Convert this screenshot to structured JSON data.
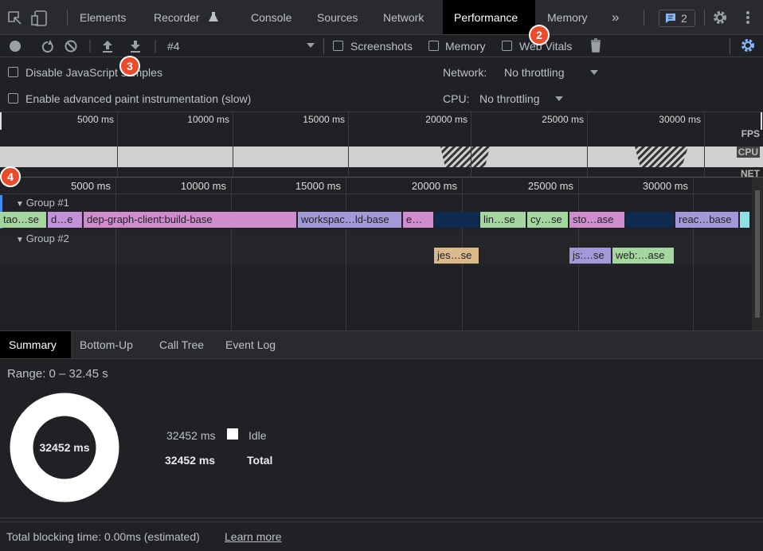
{
  "tabs": [
    "Elements",
    "Recorder",
    "Console",
    "Sources",
    "Network",
    "Performance",
    "Memory"
  ],
  "issues_count": 2,
  "badges": [
    2,
    3,
    4
  ],
  "toolbar": {
    "profile": "#4",
    "checkboxes": [
      "Screenshots",
      "Memory",
      "Web Vitals"
    ]
  },
  "settings": {
    "disable_js": "Disable JavaScript samples",
    "paint": "Enable advanced paint instrumentation (slow)",
    "network_label": "Network:",
    "network_value": "No throttling",
    "cpu_label": "CPU:",
    "cpu_value": "No throttling"
  },
  "overview": {
    "ticks": [
      "5000 ms",
      "10000 ms",
      "15000 ms",
      "20000 ms",
      "25000 ms",
      "30000 ms"
    ],
    "tracks": [
      "FPS",
      "CPU",
      "NET"
    ]
  },
  "timeline": {
    "ticks": [
      "5000 ms",
      "10000 ms",
      "15000 ms",
      "20000 ms",
      "25000 ms",
      "30000 ms"
    ],
    "groups": [
      {
        "name": "Group #1",
        "tasks": [
          "tao…se",
          "d…e",
          "dep-graph-client:build-base",
          "workspac…ld-base",
          "e…",
          null,
          "lin…se",
          "cy…se",
          "sto…ase",
          null,
          "reac…base",
          null
        ]
      },
      {
        "name": "Group #2",
        "tasks": [
          "jes…se",
          "js:…se",
          "web:…ase"
        ]
      }
    ]
  },
  "bottom_tabs": [
    "Summary",
    "Bottom-Up",
    "Call Tree",
    "Event Log"
  ],
  "summary": {
    "range": "Range: 0 – 32.45 s",
    "donut": "32452 ms",
    "rows": [
      {
        "value": "32452 ms",
        "label": "Idle"
      },
      {
        "value": "32452 ms",
        "label": "Total"
      }
    ]
  },
  "footer": {
    "text": "Total blocking time: 0.00ms (estimated)",
    "link": "Learn more"
  }
}
